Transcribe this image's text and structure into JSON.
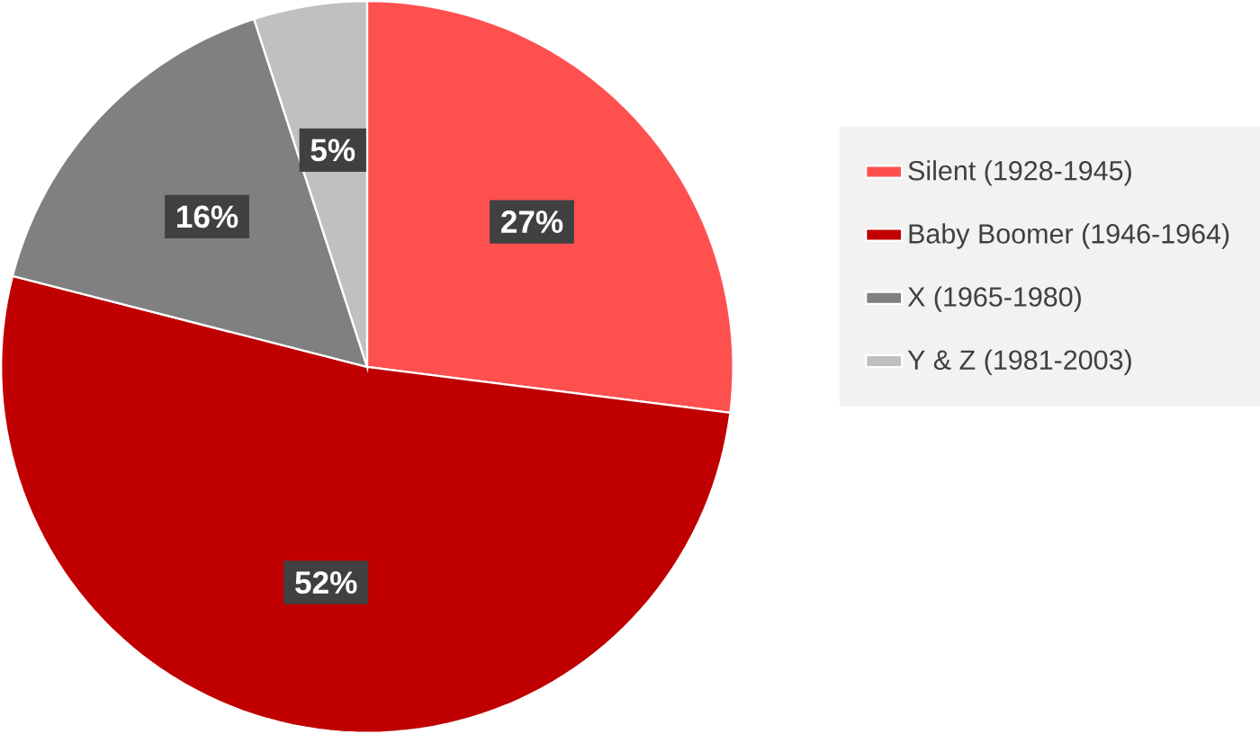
{
  "chart_data": {
    "type": "pie",
    "categories": [
      "Silent (1928-1945)",
      "Baby Boomer (1946-1964)",
      "X (1965-1980)",
      "Y & Z (1981-2003)"
    ],
    "values": [
      27,
      52,
      16,
      5
    ],
    "colors": [
      "#ff5050",
      "#c00000",
      "#808080",
      "#c0c0c0"
    ],
    "value_labels": [
      "27%",
      "52%",
      "16%",
      "5%"
    ],
    "legend": "right"
  }
}
